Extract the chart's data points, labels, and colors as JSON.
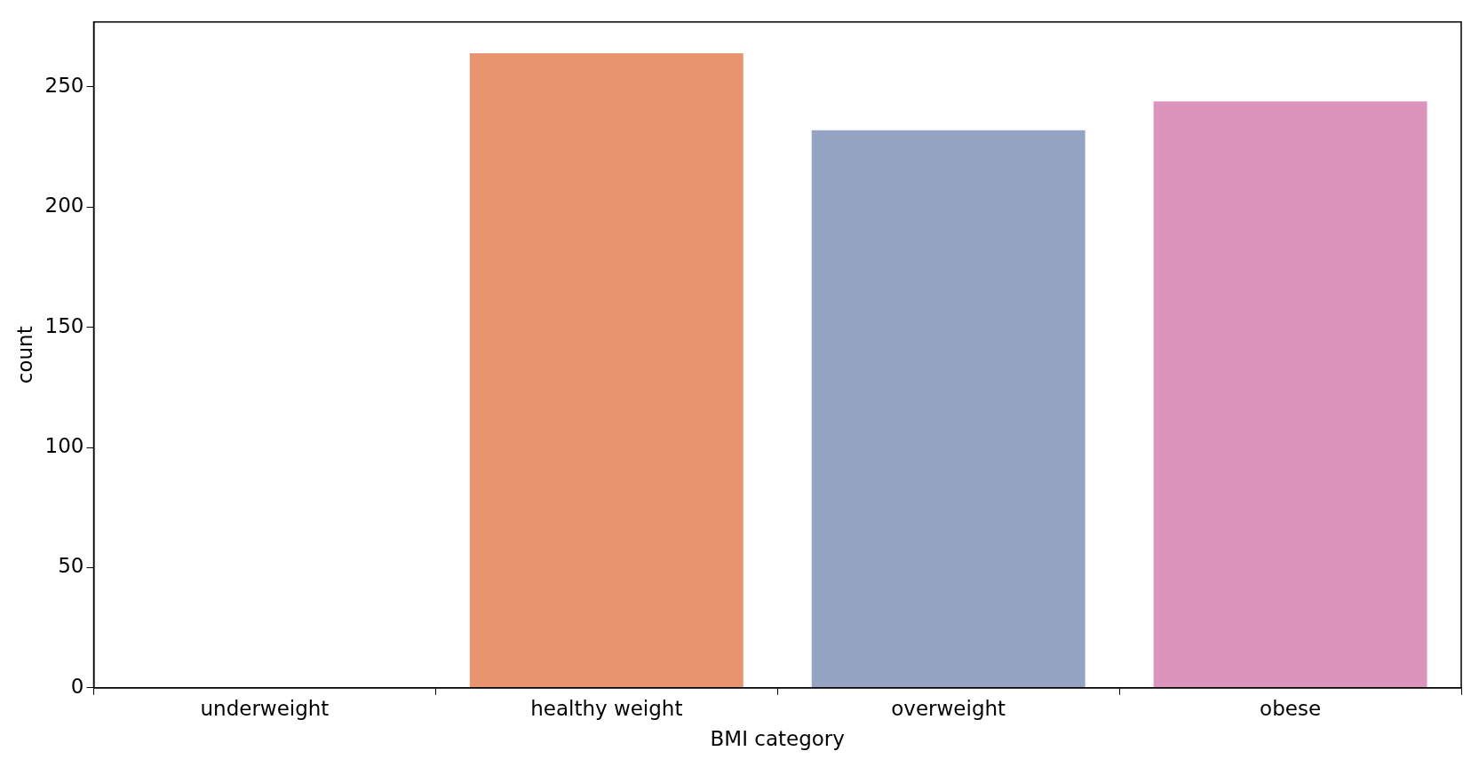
{
  "chart_data": {
    "type": "bar",
    "xlabel": "BMI category",
    "ylabel": "count",
    "categories": [
      "underweight",
      "healthy weight",
      "overweight",
      "obese"
    ],
    "values": [
      0,
      264,
      232,
      244
    ],
    "colors": [
      "#7bbca4",
      "#e8956f",
      "#95a4c3",
      "#dc94bd"
    ],
    "ylim": [
      0,
      277
    ],
    "yticks": [
      0,
      50,
      100,
      150,
      200,
      250
    ],
    "grid": false,
    "legend": false
  }
}
